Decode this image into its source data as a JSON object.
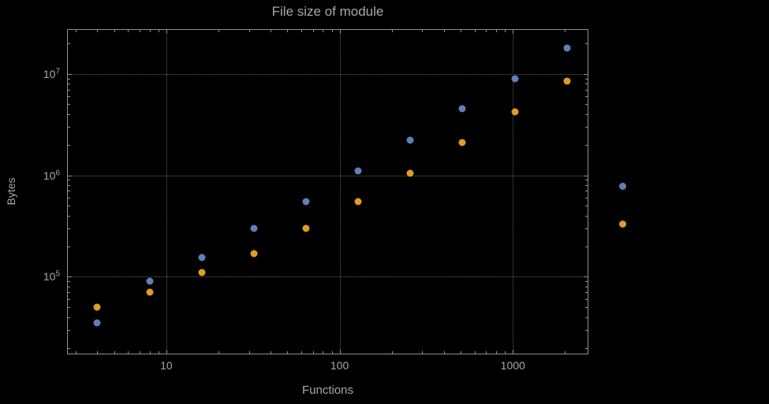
{
  "chart_data": {
    "type": "scatter",
    "title": "File size of module",
    "xlabel": "Functions",
    "ylabel": "Bytes",
    "x_scale": "log",
    "y_scale": "log",
    "xlim": [
      2.7,
      2700
    ],
    "ylim": [
      17500,
      27000000
    ],
    "grid": {
      "style": "dotted",
      "x_values": [
        10,
        100,
        1000
      ],
      "y_values": [
        100000,
        1000000,
        10000000
      ]
    },
    "x_ticks": [
      {
        "label": "10",
        "value": 10
      },
      {
        "label": "100",
        "value": 100
      },
      {
        "label": "1000",
        "value": 1000
      }
    ],
    "y_ticks": [
      {
        "base": "10",
        "exp": "5",
        "value": 100000
      },
      {
        "base": "10",
        "exp": "6",
        "value": 1000000
      },
      {
        "base": "10",
        "exp": "7",
        "value": 10000000
      }
    ],
    "x": [
      4,
      8,
      16,
      32,
      64,
      128,
      256,
      512,
      1024,
      2048
    ],
    "series": [
      {
        "color": "#5e81b5",
        "y": [
          35000,
          90000,
          155000,
          300000,
          550000,
          1100000,
          2200000,
          4500000,
          9000000,
          18000000
        ]
      },
      {
        "color": "#e19c24",
        "y": [
          50000,
          70000,
          110000,
          170000,
          300000,
          550000,
          1050000,
          2100000,
          4200000,
          8500000
        ]
      }
    ],
    "legend": {
      "position": "right-of-plot",
      "labels_visible": false,
      "markers": [
        {
          "color": "#5e81b5"
        },
        {
          "color": "#e19c24"
        }
      ]
    }
  },
  "colors": {
    "background": "#000000",
    "text": "#a8a8a8",
    "frame": "#909090",
    "grid": "#5f5f5f",
    "series_blue": "#5e81b5",
    "series_orange": "#e19c24"
  }
}
